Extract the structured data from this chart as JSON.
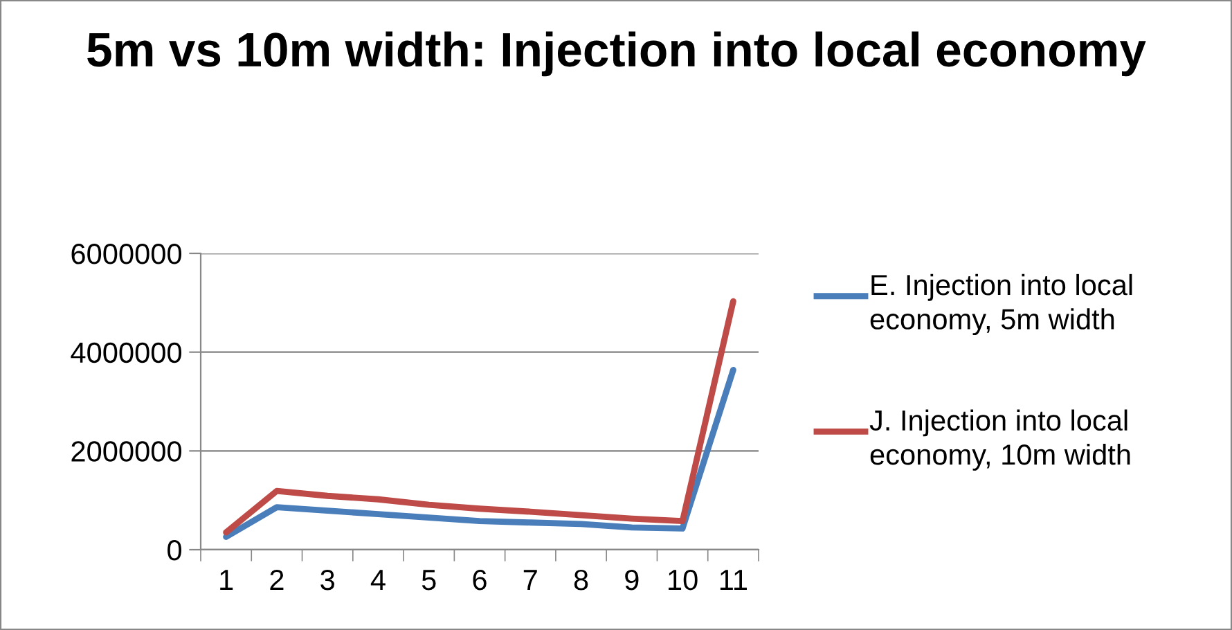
{
  "chart_data": {
    "type": "line",
    "title": "5m vs 10m width: Injection into local economy",
    "categories": [
      "1",
      "2",
      "3",
      "4",
      "5",
      "6",
      "7",
      "8",
      "9",
      "10",
      "11"
    ],
    "series": [
      {
        "name": "E. Injection into local economy, 5m width",
        "color": "#4a7ebb",
        "values": [
          260000,
          860000,
          790000,
          720000,
          650000,
          580000,
          550000,
          520000,
          450000,
          430000,
          3640000
        ]
      },
      {
        "name": "J. Injection into local economy, 10m width",
        "color": "#be4b48",
        "values": [
          350000,
          1190000,
          1090000,
          1020000,
          910000,
          830000,
          770000,
          700000,
          630000,
          580000,
          5030000
        ]
      }
    ],
    "ylim": [
      0,
      6000000
    ],
    "yticks": [
      0,
      2000000,
      4000000,
      6000000
    ],
    "grid": "y",
    "legend": "right",
    "marker": "none",
    "line_style": "solid"
  }
}
